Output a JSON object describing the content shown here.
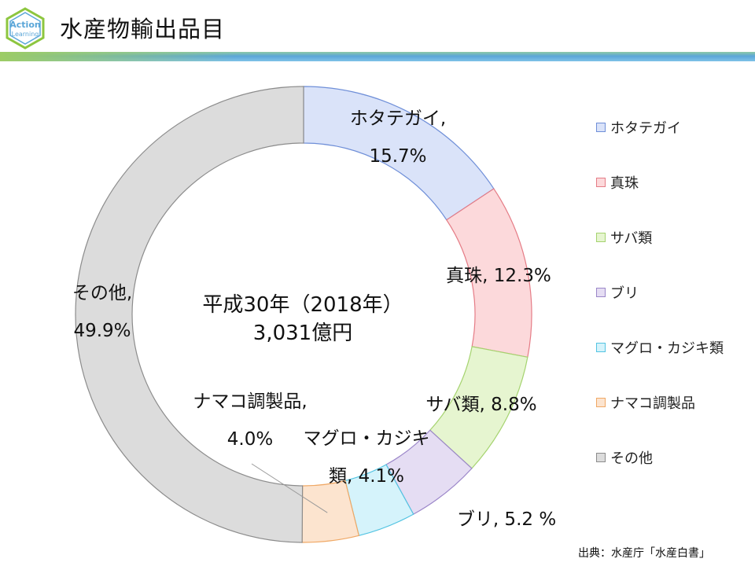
{
  "header": {
    "title": "水産物輸出品目",
    "logo": {
      "line1": "Action",
      "line2": "Learning"
    }
  },
  "chart_data": {
    "type": "pie",
    "variant": "donut",
    "title": "平成30年（2018年）",
    "subtitle": "3,031億円",
    "categories": [
      "ホタテガイ",
      "真珠",
      "サバ類",
      "ブリ",
      "マグロ・カジキ類",
      "ナマコ調製品",
      "その他"
    ],
    "values": [
      15.7,
      12.3,
      8.8,
      5.2,
      4.1,
      4.0,
      49.9
    ],
    "data_labels": [
      [
        "ホタテガイ,",
        "15.7%"
      ],
      [
        "真珠, 12.3%"
      ],
      [
        "サバ類, 8.8%"
      ],
      [
        "ブリ, 5.2 %"
      ],
      [
        "マグロ・カジキ",
        "類, 4.1%"
      ],
      [
        "ナマコ調製品,",
        "4.0%"
      ],
      [
        "その他,",
        "49.9%"
      ]
    ],
    "colors": [
      "#dae3f9",
      "#fcd9db",
      "#e6f5d0",
      "#e5ddf3",
      "#d5f3fb",
      "#fce4cf",
      "#dcdcdc"
    ],
    "stroke_colors": [
      "#6f8fd8",
      "#e57c86",
      "#a5d36f",
      "#9b86c9",
      "#53c4e2",
      "#f0a865",
      "#8c8c8c"
    ],
    "legend_position": "right",
    "unit": "%"
  },
  "source": "出典：水産庁「水産白書」"
}
